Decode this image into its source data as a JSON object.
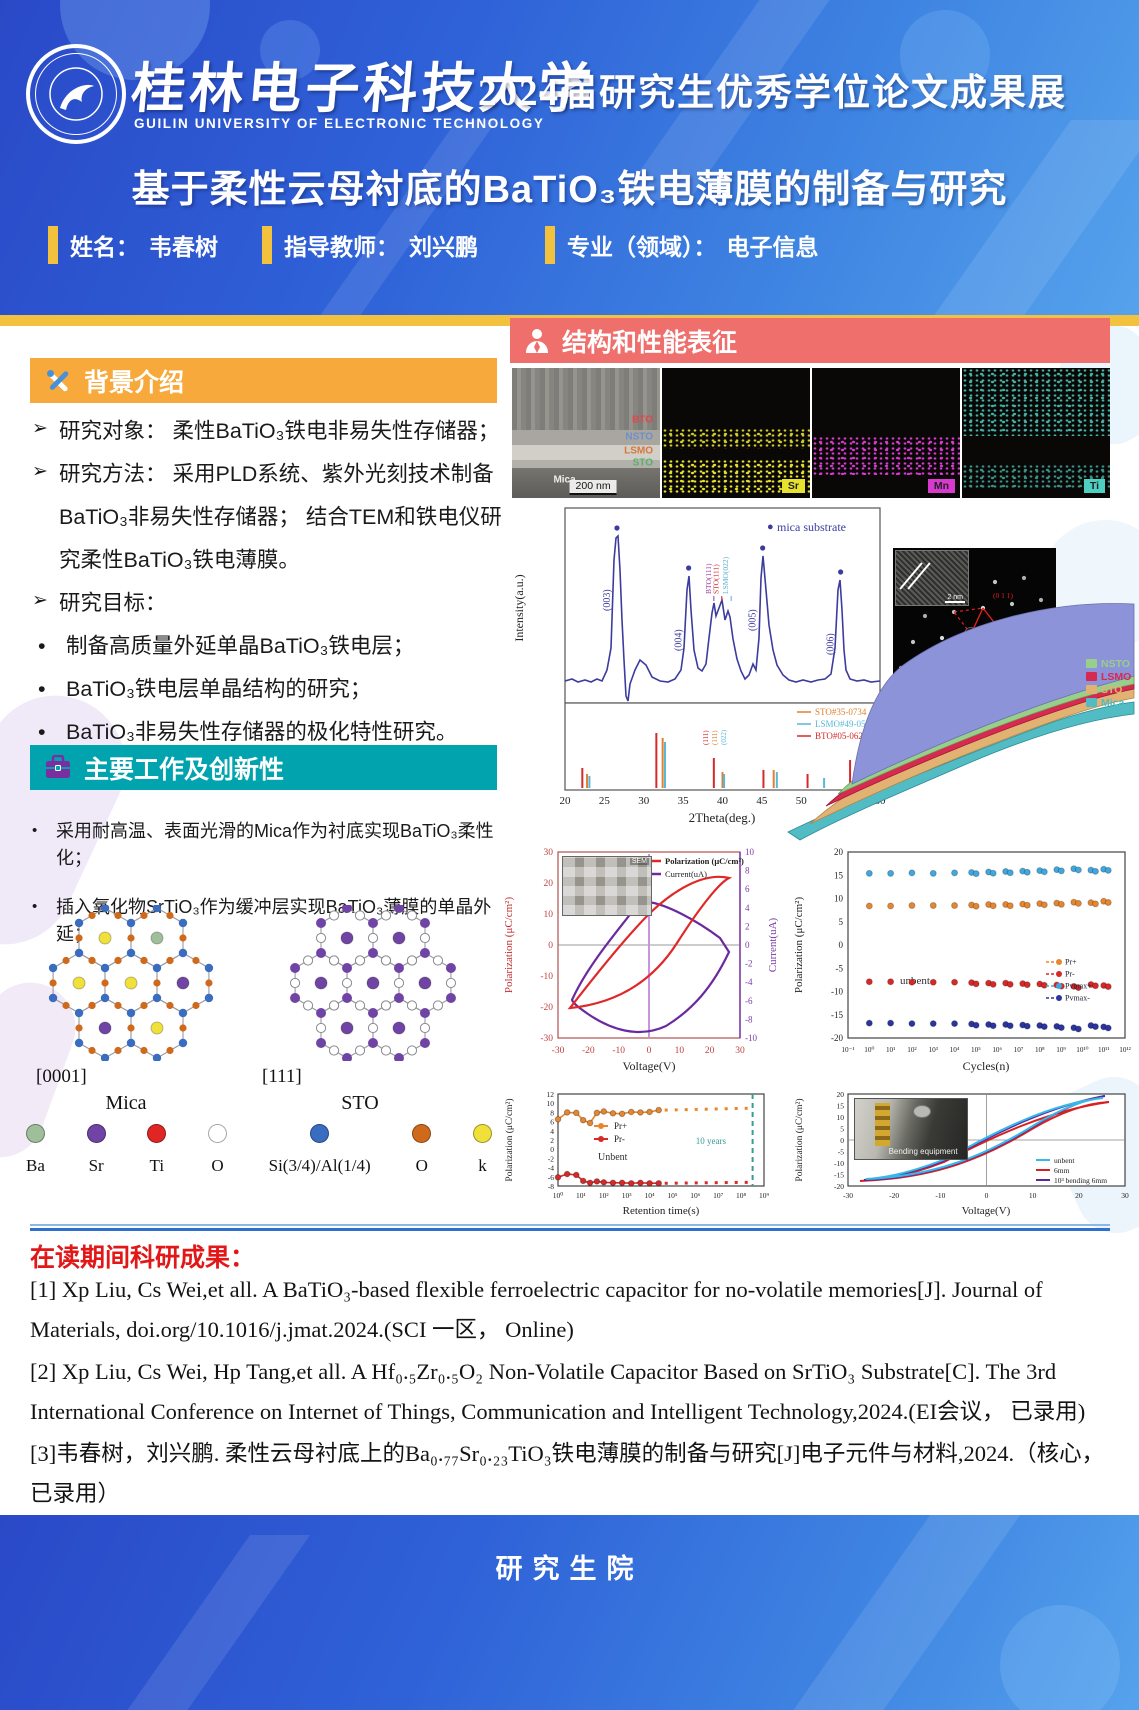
{
  "banner": {
    "university_cn": "桂林电子科技大学",
    "university_en": "GUILIN UNIVERSITY OF ELECTRONIC TECHNOLOGY",
    "event_title": "2024届研究生优秀学位论文成果展",
    "poster_title": "基于柔性云母衬底的BaTiO₃铁电薄膜的制备与研究",
    "info": [
      {
        "label": "姓名：",
        "value": "韦春树"
      },
      {
        "label": "指导教师：",
        "value": "刘兴鹏"
      },
      {
        "label": "专业（领域）：",
        "value": "电子信息"
      }
    ]
  },
  "background_section": {
    "title": "背景介绍",
    "bullet_marker": "•",
    "arrow_items": [
      {
        "marker": "➢",
        "text": "研究对象： 柔性BaTiO₃铁电非易失性存储器；"
      },
      {
        "marker": "➢",
        "text": "研究方法： 采用PLD系统、紫外光刻技术制备BaTiO₃非易失性存储器； 结合TEM和铁电仪研究柔性BaTiO₃铁电薄膜。"
      },
      {
        "marker": "➢",
        "text": "研究目标："
      }
    ],
    "bullet_items": [
      "制备高质量外延单晶BaTiO₃铁电层；",
      "BaTiO₃铁电层单晶结构的研究；",
      "BaTiO₃非易失性存储器的极化特性研究。"
    ]
  },
  "innovation_section": {
    "title": "主要工作及创新性",
    "bullet_marker": "•",
    "bullet_items": [
      "采用耐高温、表面光滑的Mica作为衬底实现BaTiO₃柔性化；",
      "插入氧化物SrTiO₃作为缓冲层实现BaTiO₃薄膜的单晶外延；"
    ]
  },
  "crystal_figures": {
    "left": {
      "axis_label": "[0001]",
      "name": "Mica"
    },
    "right": {
      "axis_label": "[111]",
      "name": "STO"
    },
    "atom_legend": [
      {
        "label": "Ba",
        "color": "#9fbf9a"
      },
      {
        "label": "Sr",
        "color": "#6f44a5"
      },
      {
        "label": "Ti",
        "color": "#e02525"
      },
      {
        "label": "O",
        "color": "#ffffff"
      },
      {
        "label": "Si(3/4)/Al(1/4)",
        "color": "#3a6cc0"
      },
      {
        "label": "O",
        "color": "#cf6a1d"
      },
      {
        "label": "k",
        "color": "#f0e03a"
      }
    ]
  },
  "characterization_section": {
    "title": "结构和性能表征",
    "tem": {
      "layer_labels": [
        {
          "text": "BTO",
          "color": "#e04848"
        },
        {
          "text": "NSTO",
          "color": "#6f8fc9"
        },
        {
          "text": "LSMO",
          "color": "#d9763a"
        },
        {
          "text": "STO",
          "color": "#57b06a"
        },
        {
          "text": "Mica",
          "color": "#efede9"
        }
      ],
      "scale_bar": "200 nm",
      "eds_maps": [
        {
          "element": "Sr",
          "color": "#e6e02e"
        },
        {
          "element": "Mn",
          "color": "#d83ad0"
        },
        {
          "element": "Ti",
          "color": "#4ecfc2"
        }
      ]
    },
    "saed": {
      "spot_labels": [
        "(1 0 1)",
        "(0 1 1)",
        "(1 1 0)"
      ],
      "layer_annotations": [
        "STO",
        "LSMO"
      ],
      "scale_bar": "5 1/nm",
      "zone_axis": "Z:[111]SrTiO₃",
      "hrtem_scale": "2 nm"
    },
    "stack_legend": [
      {
        "label": "BTO",
        "color": "#8d93d8"
      },
      {
        "label": "NSTO",
        "color": "#98cf8a"
      },
      {
        "label": "LSMO",
        "color": "#d62a50"
      },
      {
        "label": "STO",
        "color": "#e2b273"
      },
      {
        "label": "Mica",
        "color": "#52bcc4"
      }
    ]
  },
  "publications": {
    "title": "在读期间科研成果：",
    "items": [
      "[1] Xp Liu, Cs Wei,et all. A BaTiO₃-based flexible ferroelectric capacitor for no-volatile memories[J]. Journal of Materials, doi.org/10.1016/j.jmat.2024.(SCI 一区， Online)",
      "[2] Xp Liu, Cs Wei, Hp Tang,et all. A Hf₀.₅Zr₀.₅O₂ Non-Volatile Capacitor Based on SrTiO₃ Substrate[C]. The 3rd International Conference on Internet of Things, Communication and Intelligent Technology,2024.(EI会议， 已录用)",
      "[3]韦春树，刘兴鹏. 柔性云母衬底上的Ba₀.₇₇Sr₀.₂₃TiO₃铁电薄膜的制备与研究[J]电子元件与材料,2024.（核心，已录用）"
    ]
  },
  "footer": {
    "text": "研究生院"
  },
  "chart_data": [
    {
      "id": "xrd",
      "type": "line",
      "xlabel": "2Theta(deg.)",
      "ylabel": "Intensity(a.u.)",
      "xlim": [
        20,
        60
      ],
      "x_tick_labels": [
        "20",
        "25",
        "30",
        "35",
        "40",
        "45",
        "50",
        "55",
        "60"
      ],
      "legend_marker": "●",
      "legend": "mica substrate",
      "curve_color": "#3c3c9e",
      "mica_peaks": [
        {
          "label": "(003)",
          "two_theta": 26.6
        },
        {
          "label": "(004)",
          "two_theta": 35.7
        },
        {
          "label": "(005)",
          "two_theta": 45.1
        },
        {
          "label": "(006)",
          "two_theta": 55.0
        }
      ],
      "film_peaks": [
        {
          "label": "BTO(111)",
          "two_theta": 38.9,
          "color": "#9a3aa0"
        },
        {
          "label": "STO(111)",
          "two_theta": 39.9,
          "color": "#d43030"
        },
        {
          "label": "LSMO(022)",
          "two_theta": 41.1,
          "color": "#58aed6"
        }
      ],
      "reference_patterns": [
        {
          "name": "STO#35-0734",
          "color": "#e08030",
          "peaks_two_theta": [
            22.8,
            32.4,
            40.0,
            46.5,
            57.8
          ]
        },
        {
          "name": "LSMO#49-0595",
          "color": "#58b8d8",
          "peaks_two_theta": [
            23.1,
            32.7,
            40.2,
            46.9,
            52.9,
            58.1
          ]
        },
        {
          "name": "BTO#05-0626",
          "color": "#d42a2a",
          "peaks_two_theta": [
            22.2,
            31.6,
            38.9,
            45.2,
            50.8,
            56.2
          ]
        }
      ],
      "reference_peak_labels": [
        {
          "label": "(111)",
          "color": "#d42a2a"
        },
        {
          "label": "(111)",
          "color": "#e08030"
        },
        {
          "label": "(022)",
          "color": "#58b8d8"
        }
      ]
    },
    {
      "id": "pv_hysteresis",
      "type": "line",
      "xlabel": "Voltage(V)",
      "ylabel_left": "Polarization (μC/cm²)",
      "ylabel_right": "Current(uA)",
      "xlim": [
        -30,
        30
      ],
      "ylim_left": [
        -30,
        30
      ],
      "ylim_right": [
        -10,
        10
      ],
      "x_tick_labels": [
        "-30",
        "-20",
        "-10",
        "0",
        "10",
        "20",
        "30"
      ],
      "y_left_tick_labels": [
        "30",
        "20",
        "10",
        "0",
        "-10",
        "-20",
        "-30"
      ],
      "y_right_tick_labels": [
        "10",
        "8",
        "6",
        "4",
        "2",
        "0",
        "-2",
        "-4",
        "-6",
        "-8",
        "-10"
      ],
      "series": [
        {
          "name": "Polarization (μC/cm²)",
          "color": "#e02828",
          "max_polarization": 22,
          "remnant_polarization": 10,
          "coercive_voltage": 6
        },
        {
          "name": "Current(uA)",
          "color": "#6a2a9e",
          "peak_current": 7.5
        }
      ],
      "inset_label": "SEM"
    },
    {
      "id": "endurance",
      "type": "scatter",
      "xlabel": "Cycles(n)",
      "ylabel": "Polarization (μC/cm²)",
      "ylim": [
        -20,
        20
      ],
      "y_tick_labels": [
        "20",
        "15",
        "10",
        "5",
        "0",
        "-5",
        "-10",
        "-15",
        "-20"
      ],
      "x_tick_labels": [
        "10⁻¹",
        "10⁰",
        "10¹",
        "10²",
        "10³",
        "10⁴",
        "10⁵",
        "10⁶",
        "10⁷",
        "10⁸",
        "10⁹",
        "10¹⁰",
        "10¹¹",
        "10¹²"
      ],
      "annotation": "unbent",
      "x_exponents": [
        0,
        1,
        2,
        3,
        4,
        4.8,
        5.6,
        6.4,
        7.2,
        8,
        8.8,
        9.6,
        10.4,
        11
      ],
      "series": [
        {
          "name": "Pr+",
          "color": "#e8862e",
          "values": [
            8.4,
            8.4,
            8.5,
            8.5,
            8.5,
            8.6,
            8.7,
            8.7,
            8.8,
            8.9,
            9.0,
            9.2,
            9.1,
            9.4
          ]
        },
        {
          "name": "Pr-",
          "color": "#d82828",
          "values": [
            -7.9,
            -7.9,
            -8.0,
            -8.0,
            -8.0,
            -8.1,
            -8.2,
            -8.2,
            -8.3,
            -8.4,
            -8.6,
            -8.9,
            -8.5,
            -8.7
          ]
        },
        {
          "name": "Pvmax+",
          "color": "#3fa8e0",
          "values": [
            15.4,
            15.4,
            15.5,
            15.4,
            15.5,
            15.6,
            15.7,
            15.8,
            15.9,
            16.0,
            16.2,
            16.4,
            16.1,
            16.3
          ]
        },
        {
          "name": "Pvmax-",
          "color": "#2a35a0",
          "values": [
            -16.8,
            -16.8,
            -16.9,
            -16.9,
            -16.9,
            -17.0,
            -17.1,
            -17.1,
            -17.2,
            -17.3,
            -17.5,
            -17.8,
            -17.3,
            -17.6
          ]
        }
      ]
    },
    {
      "id": "retention",
      "type": "scatter",
      "xlabel": "Retention time(s)",
      "ylabel": "Polarization (μC/cm²)",
      "ylim": [
        -8,
        12
      ],
      "y_tick_labels": [
        "12",
        "10",
        "8",
        "6",
        "4",
        "2",
        "0",
        "-2",
        "-4",
        "-6",
        "-8"
      ],
      "x_tick_labels": [
        "10⁰",
        "10¹",
        "10²",
        "10³",
        "10⁴",
        "10⁵",
        "10⁶",
        "10⁷",
        "10⁸",
        "10⁹"
      ],
      "annotation": "Unbent",
      "ten_years_label": "10 years",
      "x_exponents": [
        0,
        0.4,
        0.8,
        1.1,
        1.4,
        1.7,
        2,
        2.4,
        2.8,
        3.2,
        3.6,
        4,
        4.4
      ],
      "series": [
        {
          "name": "Pr+",
          "color": "#e8862e",
          "values": [
            6.5,
            8.0,
            7.9,
            6.3,
            5.7,
            7.9,
            8.2,
            7.8,
            7.7,
            8.1,
            8.0,
            8.1,
            8.5
          ],
          "projection_value": 8.9
        },
        {
          "name": "Pr-",
          "color": "#d82828",
          "values": [
            -6.1,
            -5.4,
            -5.6,
            -6.9,
            -7.3,
            -7.0,
            -7.2,
            -7.3,
            -7.3,
            -7.4,
            -7.3,
            -7.4,
            -7.4
          ],
          "projection_value": -7.2
        }
      ]
    },
    {
      "id": "bending_hysteresis",
      "type": "line",
      "xlabel": "Voltage(V)",
      "ylabel": "Polarization (μC/cm²)",
      "xlim": [
        -30,
        30
      ],
      "ylim": [
        -20,
        20
      ],
      "x_tick_labels": [
        "-30",
        "-20",
        "-10",
        "0",
        "10",
        "20",
        "30"
      ],
      "y_tick_labels": [
        "20",
        "15",
        "10",
        "5",
        "0",
        "-5",
        "-10",
        "-15",
        "-20"
      ],
      "inset_label": "Bending equipment",
      "series": [
        {
          "name": "unbent",
          "color": "#38b8e8",
          "max_polarization": 16.5
        },
        {
          "name": "6mm",
          "color": "#d82020",
          "max_polarization": 15
        },
        {
          "name": "10³ bending 6mm",
          "color": "#5a2a9e",
          "max_polarization": 17
        }
      ]
    }
  ]
}
